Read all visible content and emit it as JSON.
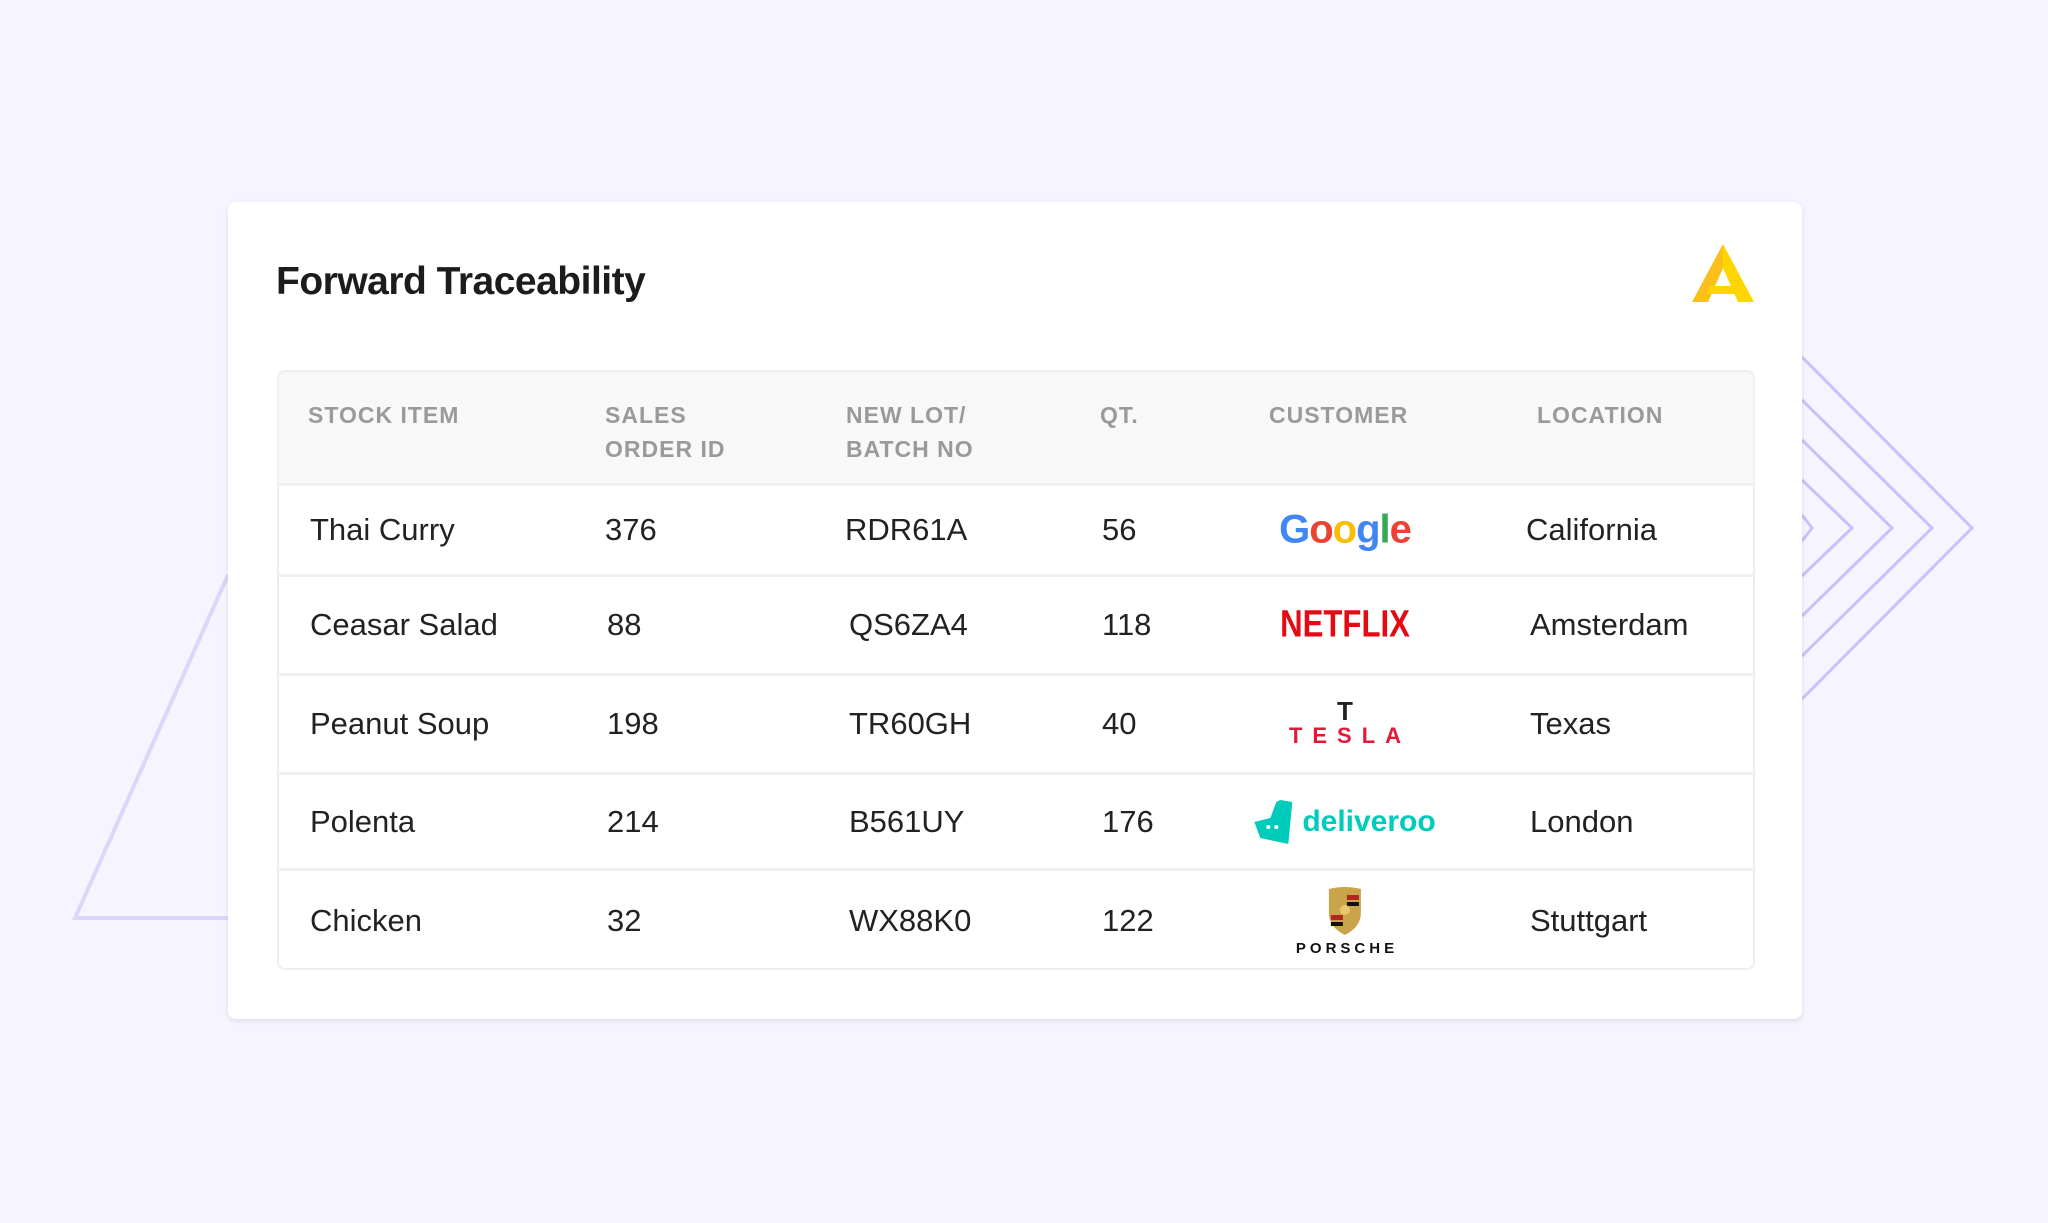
{
  "title": "Forward Traceability",
  "brand_color": "#f9c80e",
  "columns": [
    "STOCK ITEM",
    "SALES ORDER ID",
    "NEW LOT/ BATCH NO",
    "QT.",
    "CUSTOMER",
    "LOCATION"
  ],
  "header_lines": {
    "stock": [
      "STOCK ITEM"
    ],
    "order": [
      "SALES",
      "ORDER ID"
    ],
    "lot": [
      "NEW LOT/",
      "BATCH NO"
    ],
    "qt": [
      "QT."
    ],
    "customer": [
      "CUSTOMER"
    ],
    "location": [
      "LOCATION"
    ]
  },
  "rows": [
    {
      "item": "Thai Curry",
      "order_id": "376",
      "lot": "RDR61A",
      "qty": "56",
      "customer": "Google",
      "location": "California"
    },
    {
      "item": "Ceasar Salad",
      "order_id": "88",
      "lot": "QS6ZA4",
      "qty": "118",
      "customer": "NETFLIX",
      "location": "Amsterdam"
    },
    {
      "item": "Peanut Soup",
      "order_id": "198",
      "lot": "TR60GH",
      "qty": "40",
      "customer": "TESLA",
      "location": "Texas"
    },
    {
      "item": "Polenta",
      "order_id": "214",
      "lot": "B561UY",
      "qty": "176",
      "customer": "deliveroo",
      "location": "London"
    },
    {
      "item": "Chicken",
      "order_id": "32",
      "lot": "WX88K0",
      "qty": "122",
      "customer": "PORSCHE",
      "location": "Stuttgart"
    }
  ]
}
